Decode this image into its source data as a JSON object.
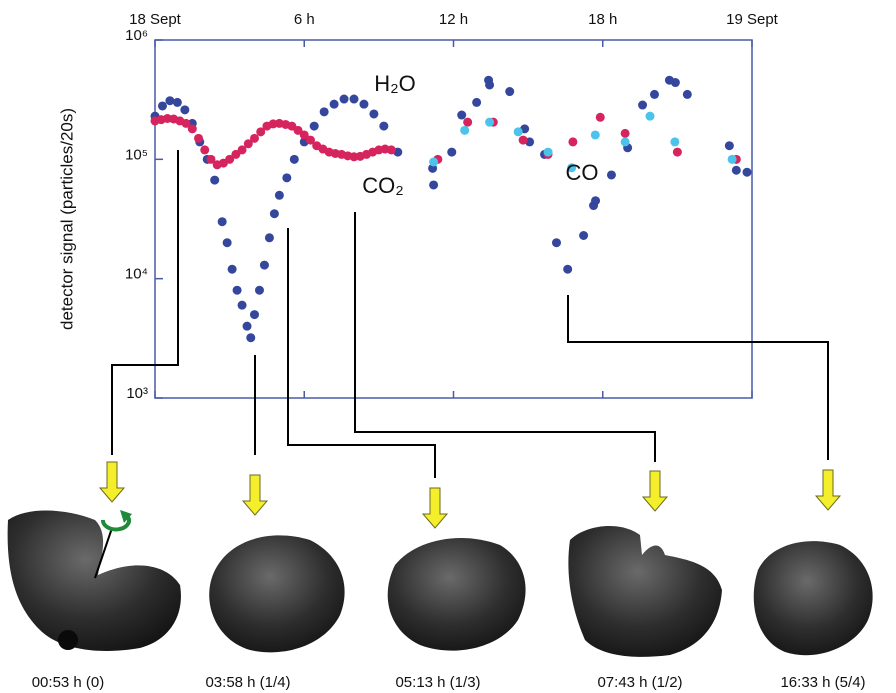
{
  "chart_data": {
    "type": "scatter",
    "ylabel": "detector signal (particles/20s)",
    "xlim": [
      0,
      24
    ],
    "ylim": [
      1000,
      1000000
    ],
    "yscale": "log",
    "xticks": [
      {
        "value": 0,
        "label": "18 Sept"
      },
      {
        "value": 6,
        "label": "6 h"
      },
      {
        "value": 12,
        "label": "12 h"
      },
      {
        "value": 18,
        "label": "18 h"
      },
      {
        "value": 24,
        "label": "19 Sept"
      }
    ],
    "yticks": [
      {
        "value": 1000,
        "label": "10³"
      },
      {
        "value": 10000,
        "label": "10⁴"
      },
      {
        "value": 100000,
        "label": "10⁵"
      },
      {
        "value": 1000000,
        "label": "10⁶"
      }
    ],
    "series": [
      {
        "name": "H₂O",
        "color": "#34479c",
        "x": [
          0,
          0.3,
          0.6,
          0.9,
          1.2,
          1.5,
          1.8,
          2.1,
          2.4,
          2.7,
          2.9,
          3.1,
          3.3,
          3.5,
          3.7,
          3.85,
          4.0,
          4.2,
          4.4,
          4.6,
          4.8,
          5.0,
          5.3,
          5.6,
          6.0,
          6.4,
          6.8,
          7.2,
          7.6,
          8.0,
          8.4,
          8.8,
          9.2,
          9.76,
          11.16,
          11.2,
          11.93,
          12.33,
          12.93,
          13.41,
          13.45,
          14.26,
          14.86,
          15.06,
          15.66,
          16.14,
          16.59,
          17.23,
          17.63,
          17.71,
          18.35,
          19.0,
          19.6,
          20.08,
          20.68,
          20.92,
          21.4,
          23.09,
          23.37,
          23.8
        ],
        "values": [
          230000,
          280000,
          310000,
          300000,
          260000,
          200000,
          140000,
          100000,
          67000,
          30000,
          20000,
          12000,
          8000,
          6000,
          4000,
          3200,
          5000,
          8000,
          13000,
          22000,
          35000,
          50000,
          70000,
          100000,
          140000,
          190000,
          250000,
          290000,
          320000,
          320000,
          290000,
          240000,
          190000,
          115000,
          84000,
          61000,
          115000,
          235000,
          300000,
          460000,
          420000,
          370000,
          180000,
          140000,
          110000,
          20000,
          12000,
          23000,
          41000,
          45000,
          74000,
          125000,
          285000,
          350000,
          460000,
          440000,
          350000,
          130000,
          81000,
          78000
        ]
      },
      {
        "name": "CO₂",
        "color": "#d6245e",
        "x": [
          0,
          0.25,
          0.5,
          0.75,
          1.0,
          1.25,
          1.5,
          1.75,
          2.0,
          2.25,
          2.5,
          2.75,
          3.0,
          3.25,
          3.5,
          3.75,
          4.0,
          4.25,
          4.5,
          4.75,
          5.0,
          5.25,
          5.5,
          5.75,
          6.0,
          6.25,
          6.5,
          6.75,
          7.0,
          7.25,
          7.5,
          7.75,
          8.0,
          8.25,
          8.5,
          8.75,
          9.0,
          9.25,
          9.5,
          11.37,
          12.57,
          13.6,
          14.8,
          15.8,
          16.8,
          17.9,
          18.9,
          21.0,
          23.37
        ],
        "values": [
          210000,
          215000,
          220000,
          218000,
          210000,
          200000,
          180000,
          150000,
          120000,
          100000,
          90000,
          93000,
          100000,
          110000,
          120000,
          135000,
          150000,
          170000,
          190000,
          198000,
          200000,
          196000,
          190000,
          175000,
          160000,
          145000,
          130000,
          122000,
          115000,
          112000,
          110000,
          107000,
          105000,
          106000,
          110000,
          115000,
          120000,
          122000,
          120000,
          100000,
          205000,
          205000,
          145000,
          110000,
          140000,
          225000,
          165000,
          115000,
          100000
        ]
      },
      {
        "name": "CO",
        "color": "#4cc3ea",
        "x": [
          11.2,
          12.45,
          13.45,
          14.6,
          15.8,
          16.75,
          17.7,
          18.9,
          19.9,
          20.9,
          23.2
        ],
        "values": [
          95000,
          175000,
          205000,
          170000,
          115000,
          85000,
          160000,
          140000,
          230000,
          140000,
          100000
        ]
      }
    ]
  },
  "snapshots": [
    "00:53 h (0)",
    "03:58 h (1/4)",
    "05:13 h (1/3)",
    "07:43 h (1/2)",
    "16:33 h (5/4)"
  ]
}
